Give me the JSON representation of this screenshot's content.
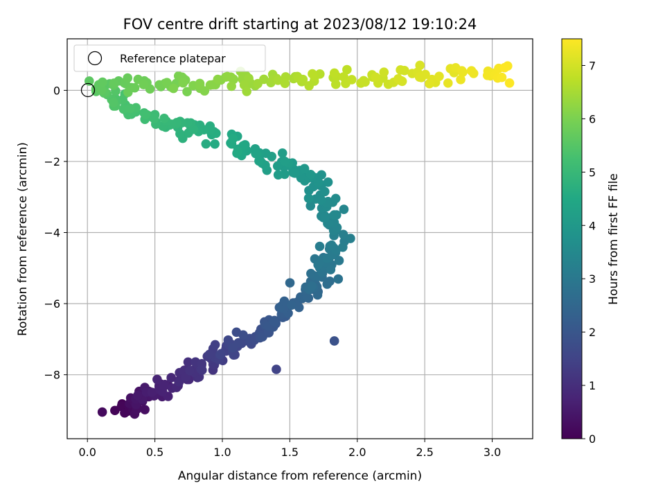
{
  "chart_data": {
    "type": "scatter",
    "title": "FOV centre drift starting at 2023/08/12 19:10:24",
    "xlabel": "Angular distance from reference (arcmin)",
    "ylabel": "Rotation from reference (arcmin)",
    "xlim": [
      -0.15,
      3.3
    ],
    "ylim": [
      -9.8,
      1.45
    ],
    "xticks": [
      0.0,
      0.5,
      1.0,
      1.5,
      2.0,
      2.5,
      3.0
    ],
    "xtick_labels": [
      "0.0",
      "0.5",
      "1.0",
      "1.5",
      "2.0",
      "2.5",
      "3.0"
    ],
    "yticks": [
      0,
      -2,
      -4,
      -6,
      -8
    ],
    "ytick_labels": [
      "0",
      "−2",
      "−4",
      "−6",
      "−8"
    ],
    "grid": true,
    "colormap": "viridis",
    "colorbar": {
      "label": "Hours from first FF file",
      "range": [
        0,
        7.5
      ],
      "ticks": [
        0,
        1,
        2,
        3,
        4,
        5,
        6,
        7
      ],
      "tick_labels": [
        "0",
        "1",
        "2",
        "3",
        "4",
        "5",
        "6",
        "7"
      ]
    },
    "legend": {
      "placement": "upper-left",
      "entries": [
        {
          "label": "Reference platepar",
          "marker": "open-circle"
        }
      ]
    },
    "reference_point": {
      "x": 0.0,
      "y": 0.0
    },
    "path_waypoints": [
      {
        "hours": 0.0,
        "x": 0.27,
        "y": -9.0
      },
      {
        "hours": 0.5,
        "x": 0.45,
        "y": -8.6
      },
      {
        "hours": 1.0,
        "x": 0.75,
        "y": -8.0
      },
      {
        "hours": 1.5,
        "x": 1.05,
        "y": -7.3
      },
      {
        "hours": 2.0,
        "x": 1.35,
        "y": -6.6
      },
      {
        "hours": 2.5,
        "x": 1.65,
        "y": -5.6
      },
      {
        "hours": 3.0,
        "x": 1.78,
        "y": -4.8
      },
      {
        "hours": 3.3,
        "x": 1.84,
        "y": -3.9
      },
      {
        "hours": 3.7,
        "x": 1.74,
        "y": -2.8
      },
      {
        "hours": 4.0,
        "x": 1.55,
        "y": -2.2
      },
      {
        "hours": 4.3,
        "x": 1.25,
        "y": -1.85
      },
      {
        "hours": 4.6,
        "x": 0.95,
        "y": -1.3
      },
      {
        "hours": 5.0,
        "x": 0.55,
        "y": -0.85
      },
      {
        "hours": 5.3,
        "x": 0.3,
        "y": -0.5
      },
      {
        "hours": 5.6,
        "x": 0.05,
        "y": 0.1
      },
      {
        "hours": 6.0,
        "x": 0.7,
        "y": 0.15
      },
      {
        "hours": 6.5,
        "x": 1.4,
        "y": 0.3
      },
      {
        "hours": 7.0,
        "x": 2.3,
        "y": 0.4
      },
      {
        "hours": 7.5,
        "x": 3.15,
        "y": 0.5
      }
    ],
    "outliers": [
      {
        "hours": 1.9,
        "x": 1.83,
        "y": -7.05
      },
      {
        "hours": 1.5,
        "x": 1.4,
        "y": -7.85
      },
      {
        "hours": 0.2,
        "x": 0.11,
        "y": -9.05
      }
    ],
    "point_count": 520,
    "scatter_x": 0.045,
    "scatter_y": 0.12
  }
}
